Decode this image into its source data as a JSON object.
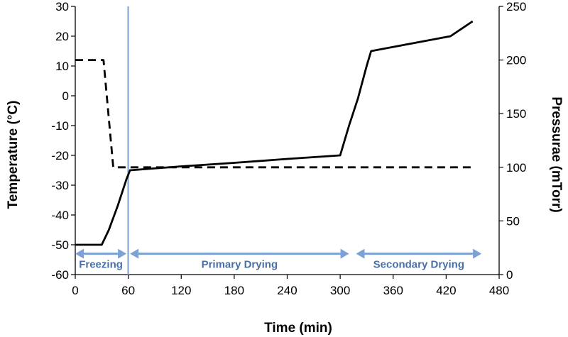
{
  "chart_data": {
    "type": "line",
    "x_axis": {
      "label": "Time (min)",
      "range": [
        0,
        480
      ],
      "ticks": [
        0,
        60,
        120,
        180,
        240,
        300,
        360,
        420,
        480
      ]
    },
    "y_left": {
      "label": "Temperature (°C)",
      "range": [
        -60,
        30
      ],
      "ticks": [
        -60,
        -50,
        -40,
        -30,
        -20,
        -10,
        0,
        10,
        20,
        30
      ]
    },
    "y_right": {
      "label": "Pressurae (mTorr)",
      "range": [
        0,
        250
      ],
      "ticks": [
        0,
        50,
        100,
        150,
        200,
        250
      ]
    },
    "series": [
      {
        "style": "solid",
        "axis": "left",
        "color": "#000000",
        "points": [
          [
            0,
            -50
          ],
          [
            30,
            -50
          ],
          [
            38,
            -45
          ],
          [
            48,
            -37
          ],
          [
            58,
            -28
          ],
          [
            62,
            -25
          ],
          [
            120,
            -23.7
          ],
          [
            180,
            -22.5
          ],
          [
            240,
            -21.2
          ],
          [
            300,
            -20
          ],
          [
            310,
            -10
          ],
          [
            320,
            -1
          ],
          [
            330,
            10
          ],
          [
            335,
            15
          ],
          [
            425,
            20
          ],
          [
            450,
            25
          ]
        ]
      },
      {
        "style": "dashed",
        "axis": "right",
        "color": "#000000",
        "points": [
          [
            0,
            200
          ],
          [
            32,
            200
          ],
          [
            43,
            100
          ],
          [
            450,
            100
          ]
        ]
      }
    ],
    "vertical_marker": {
      "x": 60,
      "color": "#8fb3de"
    },
    "phases": [
      {
        "label": "Freezing",
        "start": 0,
        "end": 58
      },
      {
        "label": "Primary Drying",
        "start": 62,
        "end": 310
      },
      {
        "label": "Secondary Drying",
        "start": 318,
        "end": 460
      }
    ],
    "phase_y": -53,
    "arrow_color": "#7da1d4",
    "grid": false,
    "legend": "none"
  }
}
